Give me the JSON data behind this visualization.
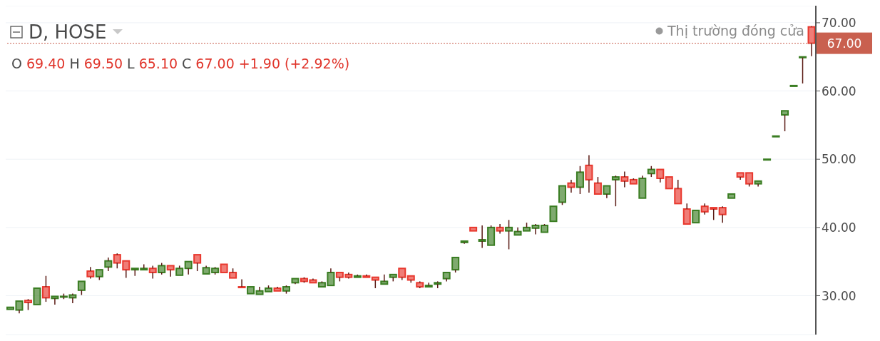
{
  "chart_data": {
    "type": "candlestick",
    "title": "D, HOSE",
    "annotations": [
      "O 69.40 H 69.50 L 65.10 C 67.00 +1.90 (+2.92%)",
      "Thị trường đóng cửa"
    ],
    "categories": [
      null,
      null,
      null,
      null,
      null,
      null,
      null,
      null,
      null,
      null,
      null,
      null,
      null,
      null,
      null,
      null,
      null,
      null,
      null,
      null,
      null,
      null,
      null,
      null,
      null,
      null,
      null,
      null,
      null,
      null,
      null,
      null,
      null,
      null,
      null,
      null,
      null,
      null,
      null,
      null,
      null,
      null,
      null,
      null,
      null,
      null,
      null,
      null,
      null,
      null,
      null,
      null,
      null,
      null,
      null,
      null,
      null,
      null,
      null,
      null,
      null,
      null,
      null,
      null,
      null,
      null,
      null,
      null,
      null,
      null,
      null,
      null,
      null,
      null,
      null,
      null,
      null,
      null,
      null,
      null,
      null,
      null,
      null,
      null,
      null,
      null,
      null,
      null,
      null,
      null,
      null
    ],
    "ohlc": [
      [
        28.0,
        28.3,
        28.0,
        28.3
      ],
      [
        27.9,
        29.2,
        27.4,
        29.2
      ],
      [
        29.3,
        29.5,
        27.9,
        29.0
      ],
      [
        28.7,
        31.1,
        28.7,
        31.1
      ],
      [
        31.3,
        32.9,
        29.1,
        29.7
      ],
      [
        29.6,
        29.9,
        28.7,
        29.9
      ],
      [
        29.8,
        30.3,
        29.5,
        29.9
      ],
      [
        29.7,
        30.3,
        28.9,
        30.1
      ],
      [
        30.8,
        32.1,
        30.1,
        32.1
      ],
      [
        33.6,
        34.2,
        32.5,
        32.8
      ],
      [
        32.8,
        33.8,
        32.3,
        33.8
      ],
      [
        34.2,
        35.6,
        33.6,
        35.1
      ],
      [
        36.0,
        36.2,
        34.0,
        34.8
      ],
      [
        35.1,
        35.1,
        32.6,
        33.8
      ],
      [
        33.8,
        34.0,
        32.9,
        34.0
      ],
      [
        33.8,
        34.6,
        33.8,
        34.0
      ],
      [
        34.0,
        34.4,
        32.5,
        33.4
      ],
      [
        33.4,
        34.8,
        33.1,
        34.4
      ],
      [
        34.4,
        34.4,
        32.8,
        33.8
      ],
      [
        33.0,
        34.4,
        33.0,
        34.0
      ],
      [
        34.0,
        35.0,
        33.1,
        35.0
      ],
      [
        36.0,
        36.0,
        33.6,
        34.8
      ],
      [
        33.2,
        34.4,
        33.2,
        34.1
      ],
      [
        33.4,
        34.2,
        33.1,
        34.0
      ],
      [
        34.6,
        34.6,
        33.4,
        33.4
      ],
      [
        33.4,
        34.0,
        32.6,
        32.6
      ],
      [
        31.3,
        32.4,
        31.2,
        31.2
      ],
      [
        30.3,
        31.3,
        30.3,
        31.3
      ],
      [
        30.2,
        31.3,
        30.2,
        30.7
      ],
      [
        30.6,
        31.5,
        30.6,
        31.1
      ],
      [
        31.1,
        31.3,
        30.7,
        30.7
      ],
      [
        30.7,
        31.5,
        30.3,
        31.3
      ],
      [
        31.9,
        32.5,
        31.7,
        32.5
      ],
      [
        32.5,
        32.7,
        31.9,
        32.1
      ],
      [
        32.3,
        32.5,
        31.9,
        31.9
      ],
      [
        31.3,
        32.1,
        31.3,
        31.9
      ],
      [
        31.5,
        34.0,
        31.5,
        33.4
      ],
      [
        33.4,
        33.4,
        32.1,
        32.7
      ],
      [
        33.1,
        33.4,
        32.5,
        32.7
      ],
      [
        32.7,
        33.1,
        32.7,
        32.9
      ],
      [
        32.9,
        33.1,
        32.7,
        32.7
      ],
      [
        32.7,
        32.7,
        31.1,
        32.3
      ],
      [
        31.7,
        33.1,
        31.7,
        32.1
      ],
      [
        32.7,
        33.1,
        32.1,
        33.1
      ],
      [
        34.0,
        34.0,
        32.3,
        32.7
      ],
      [
        32.9,
        32.9,
        31.9,
        32.3
      ],
      [
        31.9,
        32.1,
        31.1,
        31.3
      ],
      [
        31.3,
        31.9,
        31.3,
        31.5
      ],
      [
        31.7,
        32.1,
        31.1,
        31.9
      ],
      [
        32.5,
        33.4,
        32.1,
        33.4
      ],
      [
        33.8,
        35.6,
        33.4,
        35.6
      ],
      [
        37.8,
        38.0,
        37.6,
        38.0
      ],
      [
        40.0,
        40.0,
        39.5,
        39.5
      ],
      [
        38.0,
        40.3,
        37.0,
        38.2
      ],
      [
        37.4,
        40.3,
        37.4,
        40.0
      ],
      [
        40.0,
        40.5,
        39.1,
        39.5
      ],
      [
        39.5,
        41.1,
        36.8,
        40.0
      ],
      [
        38.9,
        40.0,
        38.9,
        39.4
      ],
      [
        39.5,
        40.7,
        39.5,
        40.0
      ],
      [
        39.9,
        40.5,
        39.0,
        40.3
      ],
      [
        39.3,
        40.5,
        39.3,
        40.3
      ],
      [
        40.9,
        43.1,
        40.9,
        43.1
      ],
      [
        43.7,
        46.1,
        43.3,
        46.1
      ],
      [
        46.5,
        47.0,
        45.1,
        45.9
      ],
      [
        45.9,
        49.0,
        44.9,
        48.1
      ],
      [
        49.1,
        50.6,
        45.1,
        47.0
      ],
      [
        46.5,
        47.4,
        44.9,
        44.9
      ],
      [
        44.9,
        46.1,
        44.3,
        46.1
      ],
      [
        47.0,
        47.6,
        43.1,
        47.4
      ],
      [
        47.4,
        48.2,
        45.9,
        46.8
      ],
      [
        47.0,
        47.2,
        46.4,
        46.4
      ],
      [
        44.3,
        47.6,
        44.3,
        47.2
      ],
      [
        47.9,
        49.0,
        47.4,
        48.5
      ],
      [
        48.5,
        48.5,
        46.6,
        47.2
      ],
      [
        47.4,
        47.4,
        45.7,
        45.7
      ],
      [
        45.7,
        47.0,
        43.5,
        43.5
      ],
      [
        42.7,
        43.5,
        40.5,
        40.5
      ],
      [
        40.7,
        42.5,
        40.7,
        42.5
      ],
      [
        43.1,
        43.5,
        41.9,
        42.3
      ],
      [
        42.9,
        42.9,
        41.1,
        42.7
      ],
      [
        42.9,
        43.1,
        40.7,
        41.9
      ],
      [
        44.3,
        44.9,
        44.3,
        44.9
      ],
      [
        48.0,
        48.0,
        47.0,
        47.4
      ],
      [
        48.0,
        48.0,
        46.0,
        46.4
      ],
      [
        46.4,
        46.8,
        46.0,
        46.8
      ],
      [
        49.9,
        50.0,
        49.9,
        50.0
      ],
      [
        53.3,
        53.4,
        53.3,
        53.4
      ],
      [
        56.5,
        57.1,
        54.1,
        57.1
      ],
      [
        60.7,
        60.8,
        60.7,
        60.8
      ],
      [
        64.9,
        65.0,
        61.1,
        65.0
      ],
      [
        69.4,
        69.5,
        65.1,
        67.0
      ]
    ],
    "colors": [
      "#3a7d22",
      "#3a7d22",
      "#e8382e",
      "#3a7d22",
      "#e8382e",
      "#3a7d22",
      "#3a7d22",
      "#3a7d22",
      "#3a7d22",
      "#e8382e",
      "#3a7d22",
      "#3a7d22",
      "#e8382e",
      "#e8382e",
      "#3a7d22",
      "#3a7d22",
      "#e8382e",
      "#3a7d22",
      "#e8382e",
      "#3a7d22",
      "#3a7d22",
      "#e8382e",
      "#3a7d22",
      "#3a7d22",
      "#e8382e",
      "#e8382e",
      "#e8382e",
      "#3a7d22",
      "#3a7d22",
      "#3a7d22",
      "#e8382e",
      "#3a7d22",
      "#3a7d22",
      "#e8382e",
      "#e8382e",
      "#3a7d22",
      "#3a7d22",
      "#e8382e",
      "#e8382e",
      "#3a7d22",
      "#e8382e",
      "#e8382e",
      "#3a7d22",
      "#3a7d22",
      "#e8382e",
      "#e8382e",
      "#e8382e",
      "#3a7d22",
      "#3a7d22",
      "#3a7d22",
      "#3a7d22",
      "#3a7d22",
      "#e8382e",
      "#3a7d22",
      "#3a7d22",
      "#e8382e",
      "#3a7d22",
      "#3a7d22",
      "#3a7d22",
      "#3a7d22",
      "#3a7d22",
      "#3a7d22",
      "#3a7d22",
      "#e8382e",
      "#3a7d22",
      "#e8382e",
      "#e8382e",
      "#3a7d22",
      "#3a7d22",
      "#e8382e",
      "#e8382e",
      "#3a7d22",
      "#3a7d22",
      "#e8382e",
      "#e8382e",
      "#e8382e",
      "#e8382e",
      "#3a7d22",
      "#e8382e",
      "#e8382e",
      "#e8382e",
      "#3a7d22",
      "#e8382e",
      "#e8382e",
      "#3a7d22",
      "#3a7d22",
      "#3a7d22",
      "#3a7d22",
      "#3a7d22",
      "#3a7d22",
      "#e8382e"
    ],
    "ylim": [
      24.3,
      72.5
    ],
    "yticks": [
      {
        "value": 30,
        "label": "30.00"
      },
      {
        "value": 40,
        "label": "40.00"
      },
      {
        "value": 50,
        "label": "50.00"
      },
      {
        "value": 60,
        "label": "60.00"
      },
      {
        "value": 70,
        "label": "70.00"
      }
    ],
    "ref_lines": [
      {
        "axis": "y",
        "value": 67,
        "label": "67.00",
        "color": "#c9604f",
        "line_style": "dotted"
      }
    ],
    "grid": "y"
  }
}
